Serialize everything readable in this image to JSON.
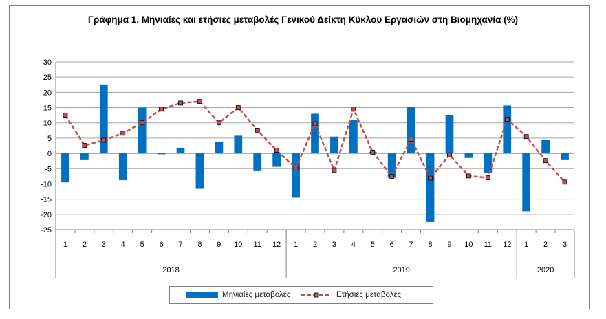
{
  "chart_data": {
    "type": "bar",
    "title": "Γράφημα 1. Μηνιαίες και ετήσιες μεταβολές  Γενικού Δείκτη Κύκλου Εργασιών στη Βιομηχανία (%)",
    "xlabel": "",
    "ylabel": "",
    "ylim": [
      -25,
      30
    ],
    "yticks": [
      -25,
      -20,
      -15,
      -10,
      -5,
      0,
      5,
      10,
      15,
      20,
      25,
      30
    ],
    "grid": true,
    "legend_position": "bottom",
    "categories": [
      "1",
      "2",
      "3",
      "4",
      "5",
      "6",
      "7",
      "8",
      "9",
      "10",
      "11",
      "12",
      "1",
      "2",
      "3",
      "4",
      "5",
      "6",
      "7",
      "8",
      "9",
      "10",
      "11",
      "12",
      "1",
      "2",
      "3"
    ],
    "groups": [
      {
        "label": "2018",
        "count": 12
      },
      {
        "label": "2019",
        "count": 12
      },
      {
        "label": "2020",
        "count": 3
      }
    ],
    "series": [
      {
        "name": "Μηνιαίες μεταβολές",
        "type": "bar",
        "color": "#0070C0",
        "values": [
          -9.5,
          -2.2,
          22.6,
          -8.8,
          15.0,
          -0.3,
          1.7,
          -11.6,
          3.8,
          5.8,
          -5.8,
          -4.4,
          -14.5,
          13.0,
          5.5,
          11.0,
          0.5,
          -8.0,
          15.2,
          -22.5,
          12.5,
          -1.5,
          -6.5,
          15.7,
          -19.0,
          4.4,
          -2.2
        ]
      },
      {
        "name": "Ετήσιες μεταβολές",
        "type": "line",
        "color": "#C0504D",
        "values": [
          12.5,
          2.6,
          4.3,
          6.6,
          10.0,
          14.5,
          16.5,
          17.0,
          10.0,
          15.0,
          7.6,
          1.0,
          -4.8,
          9.7,
          -5.6,
          14.5,
          0.4,
          -7.5,
          4.6,
          -8.1,
          -0.5,
          -7.4,
          -8.0,
          11.2,
          5.5,
          -2.4,
          -9.4
        ]
      }
    ]
  }
}
